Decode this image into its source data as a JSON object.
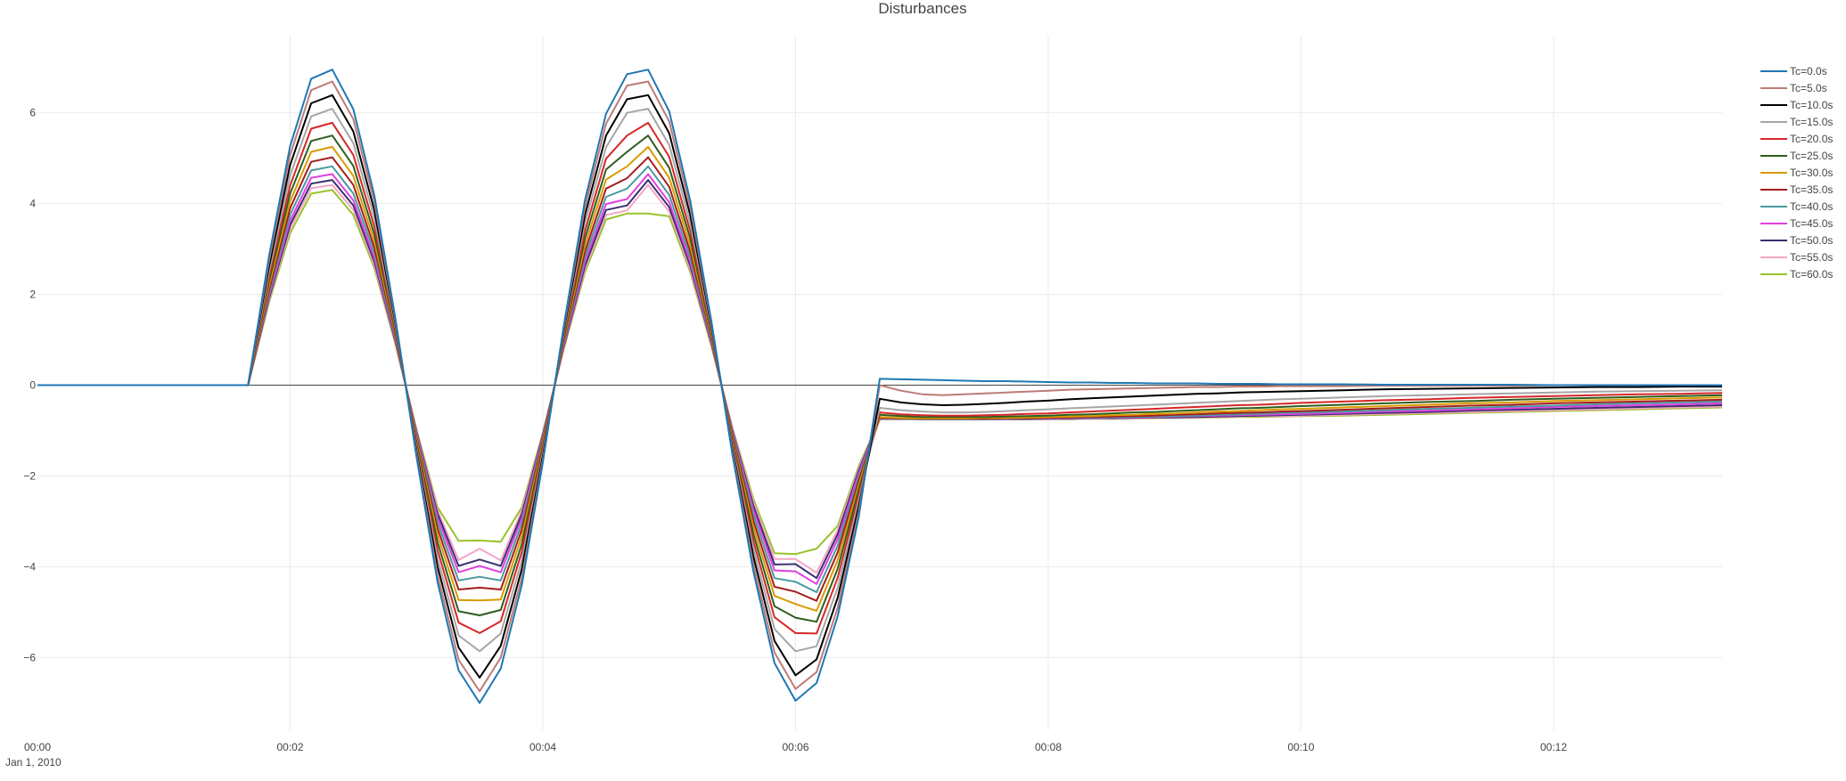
{
  "chart_data": {
    "type": "line",
    "title": "Disturbances",
    "xlabel": "",
    "ylabel": "",
    "x_unit": "seconds",
    "xlim": [
      0,
      800
    ],
    "ylim": [
      -7.6,
      7.7
    ],
    "x_tick_values": [
      0,
      120,
      240,
      360,
      480,
      600,
      720
    ],
    "x_tick_labels": [
      "00:00",
      "00:02",
      "00:04",
      "00:06",
      "00:08",
      "00:10",
      "00:12"
    ],
    "x_date_label": "Jan 1, 2010",
    "y_ticks": [
      -6,
      -4,
      -2,
      0,
      2,
      4,
      6
    ],
    "y_tick_labels": [
      "−6",
      "−4",
      "−2",
      "0",
      "2",
      "4",
      "6"
    ],
    "grid": true,
    "zero_line": true,
    "legend_position": "top-right",
    "x": [
      0,
      100,
      110,
      120,
      130,
      140,
      150,
      160,
      170,
      180,
      190,
      200,
      210,
      220,
      230,
      240,
      250,
      260,
      270,
      280,
      290,
      300,
      310,
      320,
      330,
      340,
      350,
      360,
      370,
      380,
      390,
      400,
      410,
      420,
      430,
      440,
      450,
      460,
      470,
      480,
      490,
      500,
      510,
      520,
      530,
      540,
      550,
      560,
      570,
      580,
      590,
      600,
      620,
      640,
      660,
      680,
      700,
      720,
      740,
      760,
      780,
      800
    ],
    "series": [
      {
        "name": "Tc=0.0s",
        "color": "#1f77b4",
        "values": [
          0,
          0,
          2.85,
          5.27,
          6.75,
          6.95,
          6.08,
          4.18,
          1.47,
          -1.58,
          -4.34,
          -6.28,
          -7.0,
          -6.24,
          -4.4,
          -1.7,
          1.32,
          4.08,
          5.98,
          6.85,
          6.95,
          6.03,
          4.06,
          1.42,
          -1.52,
          -4.11,
          -6.12,
          -6.95,
          -6.56,
          -5.09,
          -2.9,
          0.14,
          0.13,
          0.12,
          0.11,
          0.1,
          0.09,
          0.09,
          0.08,
          0.07,
          0.06,
          0.06,
          0.05,
          0.05,
          0.04,
          0.04,
          0.04,
          0.03,
          0.03,
          0.03,
          0.02,
          0.02,
          0.02,
          0.01,
          0.01,
          0.01,
          0.01,
          0.0,
          0.0,
          0.0,
          0.0,
          0.0
        ]
      },
      {
        "name": "Tc=5.0s",
        "color": "#bc7b77",
        "values": [
          0,
          0,
          2.75,
          5.07,
          6.5,
          6.69,
          5.86,
          4.03,
          1.41,
          -1.52,
          -4.18,
          -6.05,
          -6.74,
          -6.0,
          -4.24,
          -1.64,
          1.27,
          3.93,
          5.76,
          6.6,
          6.69,
          5.81,
          3.91,
          1.37,
          -1.46,
          -3.96,
          -5.89,
          -6.69,
          -6.32,
          -4.9,
          -2.79,
          0.0,
          -0.12,
          -0.2,
          -0.22,
          -0.2,
          -0.18,
          -0.16,
          -0.14,
          -0.12,
          -0.1,
          -0.09,
          -0.08,
          -0.07,
          -0.06,
          -0.05,
          -0.04,
          -0.04,
          -0.03,
          -0.03,
          -0.02,
          -0.02,
          -0.02,
          -0.01,
          -0.01,
          -0.01,
          -0.01,
          0.0,
          0.0,
          0.0,
          0.0,
          0.0
        ]
      },
      {
        "name": "Tc=10.0s",
        "color": "#000000",
        "values": [
          0,
          0,
          2.62,
          4.85,
          6.21,
          6.39,
          5.59,
          3.85,
          1.35,
          -1.45,
          -3.99,
          -5.78,
          -6.44,
          -5.74,
          -4.05,
          -1.56,
          1.21,
          3.75,
          5.5,
          6.3,
          6.39,
          5.55,
          3.74,
          1.31,
          -1.4,
          -3.78,
          -5.63,
          -6.39,
          -6.04,
          -4.68,
          -2.67,
          -0.3,
          -0.38,
          -0.42,
          -0.44,
          -0.43,
          -0.41,
          -0.39,
          -0.36,
          -0.34,
          -0.31,
          -0.29,
          -0.27,
          -0.25,
          -0.23,
          -0.21,
          -0.19,
          -0.18,
          -0.16,
          -0.15,
          -0.14,
          -0.13,
          -0.11,
          -0.09,
          -0.08,
          -0.07,
          -0.06,
          -0.05,
          -0.04,
          -0.04,
          -0.03,
          -0.03
        ]
      },
      {
        "name": "Tc=15.0s",
        "color": "#a6a6a6",
        "values": [
          0,
          0,
          2.5,
          4.62,
          5.92,
          6.09,
          5.33,
          3.67,
          1.29,
          -1.39,
          -3.81,
          -5.51,
          -5.86,
          -5.47,
          -3.86,
          -1.49,
          1.16,
          3.58,
          5.24,
          6.0,
          6.09,
          5.29,
          3.56,
          1.25,
          -1.33,
          -3.61,
          -5.37,
          -5.86,
          -5.75,
          -4.46,
          -2.54,
          -0.5,
          -0.55,
          -0.58,
          -0.6,
          -0.6,
          -0.59,
          -0.57,
          -0.55,
          -0.53,
          -0.51,
          -0.49,
          -0.47,
          -0.45,
          -0.43,
          -0.41,
          -0.39,
          -0.37,
          -0.35,
          -0.33,
          -0.31,
          -0.3,
          -0.27,
          -0.24,
          -0.22,
          -0.2,
          -0.18,
          -0.16,
          -0.14,
          -0.13,
          -0.12,
          -0.11
        ]
      },
      {
        "name": "Tc=20.0s",
        "color": "#d62728",
        "values": [
          0,
          0,
          2.4,
          4.4,
          5.65,
          5.78,
          5.07,
          3.49,
          1.23,
          -1.32,
          -3.63,
          -5.23,
          -5.46,
          -5.2,
          -3.67,
          -1.42,
          1.1,
          3.4,
          4.99,
          5.5,
          5.78,
          5.03,
          3.39,
          1.19,
          -1.27,
          -3.44,
          -5.11,
          -5.46,
          -5.47,
          -4.24,
          -2.42,
          -0.6,
          -0.64,
          -0.66,
          -0.67,
          -0.67,
          -0.66,
          -0.65,
          -0.63,
          -0.62,
          -0.6,
          -0.58,
          -0.56,
          -0.54,
          -0.52,
          -0.5,
          -0.48,
          -0.46,
          -0.44,
          -0.43,
          -0.41,
          -0.39,
          -0.36,
          -0.33,
          -0.31,
          -0.28,
          -0.26,
          -0.24,
          -0.22,
          -0.2,
          -0.19,
          -0.17
        ]
      },
      {
        "name": "Tc=25.0s",
        "color": "#2e5e1e",
        "values": [
          0,
          0,
          2.3,
          4.22,
          5.38,
          5.5,
          4.83,
          3.32,
          1.17,
          -1.26,
          -3.46,
          -4.98,
          -5.07,
          -4.95,
          -3.5,
          -1.35,
          1.05,
          3.24,
          4.75,
          5.14,
          5.5,
          4.79,
          3.23,
          1.13,
          -1.21,
          -3.28,
          -4.87,
          -5.12,
          -5.21,
          -4.04,
          -2.3,
          -0.65,
          -0.68,
          -0.7,
          -0.7,
          -0.7,
          -0.7,
          -0.69,
          -0.68,
          -0.67,
          -0.65,
          -0.64,
          -0.62,
          -0.6,
          -0.59,
          -0.57,
          -0.55,
          -0.53,
          -0.51,
          -0.5,
          -0.48,
          -0.46,
          -0.43,
          -0.4,
          -0.37,
          -0.35,
          -0.32,
          -0.3,
          -0.28,
          -0.26,
          -0.24,
          -0.22
        ]
      },
      {
        "name": "Tc=30.0s",
        "color": "#d99a00",
        "values": [
          0,
          0,
          2.2,
          4.05,
          5.14,
          5.25,
          4.61,
          3.17,
          1.12,
          -1.2,
          -3.3,
          -4.73,
          -4.74,
          -4.72,
          -3.33,
          -1.29,
          1.0,
          3.09,
          4.53,
          4.82,
          5.25,
          4.57,
          3.08,
          1.08,
          -1.16,
          -3.13,
          -4.64,
          -4.82,
          -4.97,
          -3.85,
          -2.2,
          -0.7,
          -0.72,
          -0.73,
          -0.73,
          -0.73,
          -0.72,
          -0.72,
          -0.71,
          -0.7,
          -0.69,
          -0.68,
          -0.66,
          -0.65,
          -0.63,
          -0.62,
          -0.6,
          -0.58,
          -0.57,
          -0.55,
          -0.53,
          -0.52,
          -0.49,
          -0.46,
          -0.43,
          -0.4,
          -0.38,
          -0.35,
          -0.33,
          -0.31,
          -0.29,
          -0.27
        ]
      },
      {
        "name": "Tc=35.0s",
        "color": "#a51d1d",
        "values": [
          0,
          0,
          2.1,
          3.9,
          4.92,
          5.02,
          4.41,
          3.03,
          1.07,
          -1.15,
          -3.16,
          -4.5,
          -4.46,
          -4.5,
          -3.18,
          -1.23,
          0.96,
          2.95,
          4.33,
          4.56,
          5.02,
          4.37,
          2.94,
          1.03,
          -1.1,
          -2.99,
          -4.44,
          -4.55,
          -4.75,
          -3.68,
          -2.1,
          -0.72,
          -0.73,
          -0.74,
          -0.74,
          -0.74,
          -0.74,
          -0.73,
          -0.73,
          -0.72,
          -0.71,
          -0.7,
          -0.69,
          -0.68,
          -0.67,
          -0.65,
          -0.64,
          -0.62,
          -0.61,
          -0.6,
          -0.58,
          -0.57,
          -0.54,
          -0.51,
          -0.48,
          -0.45,
          -0.43,
          -0.4,
          -0.38,
          -0.36,
          -0.34,
          -0.32
        ]
      },
      {
        "name": "Tc=40.0s",
        "color": "#4a9aa0",
        "values": [
          0,
          0,
          2.03,
          3.76,
          4.73,
          4.82,
          4.22,
          2.91,
          1.03,
          -1.1,
          -3.03,
          -4.3,
          -4.22,
          -4.3,
          -3.05,
          -1.18,
          0.92,
          2.83,
          4.15,
          4.33,
          4.82,
          4.19,
          2.82,
          0.99,
          -1.06,
          -2.86,
          -4.25,
          -4.33,
          -4.56,
          -3.53,
          -2.02,
          -0.73,
          -0.74,
          -0.75,
          -0.75,
          -0.75,
          -0.75,
          -0.74,
          -0.74,
          -0.73,
          -0.72,
          -0.72,
          -0.71,
          -0.7,
          -0.69,
          -0.68,
          -0.67,
          -0.65,
          -0.64,
          -0.63,
          -0.61,
          -0.6,
          -0.58,
          -0.55,
          -0.52,
          -0.5,
          -0.47,
          -0.45,
          -0.42,
          -0.4,
          -0.38,
          -0.36
        ]
      },
      {
        "name": "Tc=45.0s",
        "color": "#e040e0",
        "values": [
          0,
          0,
          1.97,
          3.63,
          4.57,
          4.65,
          4.07,
          2.8,
          0.99,
          -1.06,
          -2.92,
          -4.12,
          -3.98,
          -4.12,
          -2.93,
          -1.14,
          0.88,
          2.72,
          3.99,
          4.1,
          4.65,
          4.03,
          2.71,
          0.95,
          -1.02,
          -2.75,
          -4.08,
          -4.1,
          -4.38,
          -3.39,
          -1.94,
          -0.74,
          -0.74,
          -0.75,
          -0.75,
          -0.75,
          -0.75,
          -0.75,
          -0.74,
          -0.74,
          -0.73,
          -0.73,
          -0.72,
          -0.71,
          -0.7,
          -0.69,
          -0.68,
          -0.67,
          -0.66,
          -0.65,
          -0.64,
          -0.63,
          -0.61,
          -0.58,
          -0.56,
          -0.53,
          -0.51,
          -0.48,
          -0.46,
          -0.44,
          -0.42,
          -0.4
        ]
      },
      {
        "name": "Tc=50.0s",
        "color": "#3b2f6e",
        "values": [
          0,
          0,
          1.92,
          3.53,
          4.44,
          4.52,
          3.96,
          2.72,
          0.96,
          -1.03,
          -2.83,
          -3.98,
          -3.84,
          -3.98,
          -2.84,
          -1.1,
          0.85,
          2.63,
          3.86,
          3.96,
          4.52,
          3.92,
          2.63,
          0.92,
          -0.99,
          -2.66,
          -3.95,
          -3.94,
          -4.25,
          -3.28,
          -1.88,
          -0.74,
          -0.74,
          -0.75,
          -0.75,
          -0.75,
          -0.75,
          -0.75,
          -0.75,
          -0.74,
          -0.74,
          -0.73,
          -0.73,
          -0.72,
          -0.71,
          -0.71,
          -0.7,
          -0.69,
          -0.68,
          -0.67,
          -0.66,
          -0.65,
          -0.63,
          -0.61,
          -0.59,
          -0.56,
          -0.54,
          -0.52,
          -0.5,
          -0.48,
          -0.46,
          -0.44
        ]
      },
      {
        "name": "Tc=55.0s",
        "color": "#f4a6c6",
        "values": [
          0,
          0,
          1.88,
          3.45,
          4.34,
          4.41,
          3.86,
          2.65,
          0.94,
          -1.0,
          -2.76,
          -3.85,
          -3.6,
          -3.86,
          -2.76,
          -1.07,
          0.83,
          2.56,
          3.75,
          3.85,
          4.41,
          3.82,
          2.56,
          0.9,
          -0.96,
          -2.58,
          -3.83,
          -3.83,
          -4.13,
          -3.19,
          -1.83,
          -0.74,
          -0.75,
          -0.75,
          -0.75,
          -0.75,
          -0.75,
          -0.75,
          -0.75,
          -0.75,
          -0.74,
          -0.74,
          -0.73,
          -0.73,
          -0.72,
          -0.72,
          -0.71,
          -0.7,
          -0.69,
          -0.68,
          -0.68,
          -0.67,
          -0.65,
          -0.63,
          -0.61,
          -0.59,
          -0.57,
          -0.55,
          -0.53,
          -0.51,
          -0.49,
          -0.47
        ]
      },
      {
        "name": "Tc=60.0s",
        "color": "#9ac22a",
        "values": [
          0,
          0,
          1.83,
          3.35,
          4.22,
          4.3,
          3.75,
          2.58,
          0.91,
          -0.97,
          -2.69,
          -3.43,
          -3.42,
          -3.45,
          -2.69,
          -1.04,
          0.81,
          2.49,
          3.65,
          3.78,
          3.78,
          3.72,
          2.49,
          0.87,
          -0.93,
          -2.51,
          -3.7,
          -3.72,
          -3.6,
          -3.1,
          -1.78,
          -0.75,
          -0.75,
          -0.75,
          -0.75,
          -0.75,
          -0.75,
          -0.75,
          -0.75,
          -0.75,
          -0.75,
          -0.74,
          -0.74,
          -0.73,
          -0.73,
          -0.72,
          -0.72,
          -0.71,
          -0.7,
          -0.7,
          -0.69,
          -0.68,
          -0.67,
          -0.65,
          -0.63,
          -0.61,
          -0.59,
          -0.57,
          -0.55,
          -0.53,
          -0.51,
          -0.49
        ]
      }
    ]
  }
}
